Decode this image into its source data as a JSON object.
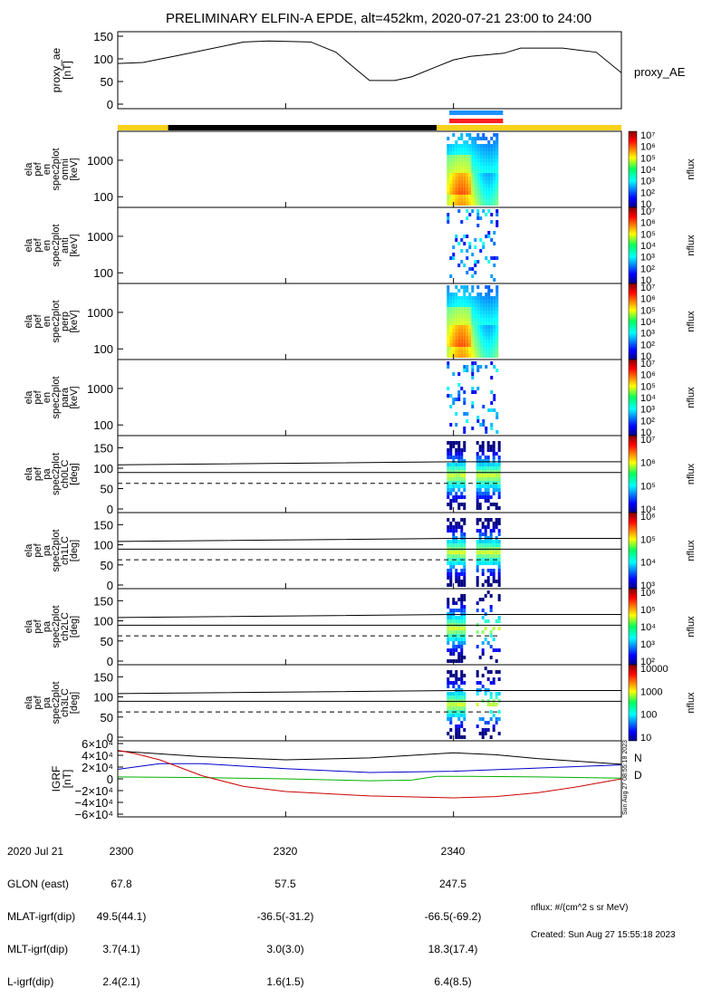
{
  "title": "PRELIMINARY ELFIN-A EPDE, alt=452km, 2020-07-21 23:00 to 24:00",
  "colors": {
    "axis": "#000000",
    "bar_yellow": "#f7d21a",
    "bar_black": "#000000",
    "bar_blue": "#1e90ff",
    "bar_red": "#ff2020",
    "grf_n": "#0000cc",
    "grf_d": "#cc0000",
    "grf_black": "#000000",
    "grf_green": "#00b000"
  },
  "chart_data": [
    {
      "type": "line",
      "name": "proxy_ae",
      "ylabel": [
        "proxy_ae",
        "[nT]"
      ],
      "legend": "proxy_AE",
      "ylim": [
        0,
        150
      ],
      "yticks": [
        "0",
        "50",
        "100",
        "150"
      ],
      "x": [
        2300,
        2303,
        2307,
        2315,
        2318,
        2323,
        2326,
        2328,
        2330,
        2333,
        2335,
        2338,
        2340,
        2342,
        2344,
        2346,
        2348,
        2350,
        2353,
        2357,
        2360
      ],
      "y": [
        88,
        90,
        103,
        130,
        132,
        130,
        110,
        82,
        55,
        55,
        62,
        82,
        95,
        102,
        105,
        108,
        118,
        118,
        118,
        110,
        70
      ]
    },
    {
      "type": "heatmap",
      "name": "omni",
      "ylabel": [
        "ela",
        "pef",
        "en",
        "spec2plot",
        "omni",
        "[keV]"
      ],
      "yscale": "log",
      "yticks": [
        "100",
        "1000"
      ],
      "zlabel": "nflux",
      "zticks": [
        "10",
        "10²",
        "10³",
        "10⁴",
        "10⁵",
        "10⁶",
        "10⁷"
      ]
    },
    {
      "type": "heatmap",
      "name": "anti",
      "ylabel": [
        "ela",
        "pef",
        "en",
        "spec2plot",
        "anti",
        "[keV]"
      ],
      "yscale": "log",
      "yticks": [
        "100",
        "1000"
      ],
      "zlabel": "nflux",
      "zticks": [
        "10",
        "10²",
        "10³",
        "10⁴",
        "10⁵",
        "10⁶",
        "10⁷"
      ]
    },
    {
      "type": "heatmap",
      "name": "perp",
      "ylabel": [
        "ela",
        "pef",
        "en",
        "spec2plot",
        "perp",
        "[keV]"
      ],
      "yscale": "log",
      "yticks": [
        "100",
        "1000"
      ],
      "zlabel": "nflux",
      "zticks": [
        "10",
        "10²",
        "10³",
        "10⁴",
        "10⁵",
        "10⁶",
        "10⁷"
      ]
    },
    {
      "type": "heatmap",
      "name": "para",
      "ylabel": [
        "ela",
        "pef",
        "en",
        "spec2plot",
        "para",
        "[keV]"
      ],
      "yscale": "log",
      "yticks": [
        "100",
        "1000"
      ],
      "zlabel": "nflux",
      "zticks": [
        "10",
        "10²",
        "10³",
        "10⁴",
        "10⁵",
        "10⁶",
        "10⁷"
      ]
    },
    {
      "type": "heatmap",
      "name": "ch0LC",
      "ylabel": [
        "ela",
        "pef",
        "pa",
        "spec2plot",
        "ch0LC",
        "[deg]"
      ],
      "ylim": [
        0,
        180
      ],
      "yticks": [
        "0",
        "50",
        "100",
        "150"
      ],
      "zlabel": "nflux",
      "zticks": [
        "10⁴",
        "10⁵",
        "10⁶",
        "10⁷"
      ]
    },
    {
      "type": "heatmap",
      "name": "ch1LC",
      "ylabel": [
        "ela",
        "pef",
        "pa",
        "spec2plot",
        "ch1LC",
        "[deg]"
      ],
      "ylim": [
        0,
        180
      ],
      "yticks": [
        "0",
        "50",
        "100",
        "150"
      ],
      "zlabel": "nflux",
      "zticks": [
        "10³",
        "10⁴",
        "10⁵",
        "10⁶"
      ]
    },
    {
      "type": "heatmap",
      "name": "ch2LC",
      "ylabel": [
        "ela",
        "pef",
        "pa",
        "spec2plot",
        "ch2LC",
        "[deg]"
      ],
      "ylim": [
        0,
        180
      ],
      "yticks": [
        "0",
        "50",
        "100",
        "150"
      ],
      "zlabel": "nflux",
      "zticks": [
        "10²",
        "10³",
        "10⁴",
        "10⁵",
        "10⁶"
      ]
    },
    {
      "type": "heatmap",
      "name": "ch3LC",
      "ylabel": [
        "ela",
        "pef",
        "pa",
        "spec2plot",
        "ch3LC",
        "[deg]"
      ],
      "ylim": [
        0,
        180
      ],
      "yticks": [
        "0",
        "50",
        "100",
        "150"
      ],
      "zlabel": "nflux",
      "zticks": [
        "10",
        "100",
        "1000",
        "10000"
      ]
    },
    {
      "type": "line",
      "name": "IGRF",
      "ylabel": [
        "IGRF",
        "[nT]"
      ],
      "ylim": [
        -60000,
        60000
      ],
      "yticks": [
        "−6×10⁴",
        "−4×10⁴",
        "−2×10⁴",
        "0",
        "2×10⁴",
        "4×10⁴",
        "6×10⁴"
      ],
      "legend": [
        "N",
        "D"
      ],
      "series": [
        {
          "color": "black",
          "x": [
            2300,
            2310,
            2320,
            2330,
            2340,
            2345,
            2350,
            2360
          ],
          "y": [
            44000,
            35000,
            30000,
            33000,
            41000,
            38000,
            32000,
            23000
          ]
        },
        {
          "color": "blue",
          "x": [
            2300,
            2305,
            2310,
            2320,
            2330,
            2340,
            2350,
            2360
          ],
          "y": [
            15000,
            24000,
            24000,
            16000,
            10000,
            12000,
            17000,
            22000
          ]
        },
        {
          "color": "green",
          "x": [
            2300,
            2310,
            2320,
            2330,
            2335,
            2338,
            2342,
            2350,
            2360
          ],
          "y": [
            3000,
            2000,
            0,
            -3000,
            -2000,
            4000,
            4000,
            3000,
            1000
          ]
        },
        {
          "color": "red",
          "x": [
            2300,
            2302,
            2305,
            2310,
            2315,
            2320,
            2330,
            2340,
            2345,
            2350,
            2355,
            2360
          ],
          "y": [
            45000,
            40000,
            30000,
            5000,
            -12000,
            -20000,
            -27000,
            -30000,
            -28000,
            -22000,
            -12000,
            0
          ]
        }
      ]
    }
  ],
  "orbit_bars": [
    {
      "start": 2300,
      "end": 2306,
      "color": "yellow"
    },
    {
      "start": 2306,
      "end": 2338,
      "color": "black"
    },
    {
      "start": 2338,
      "end": 2360,
      "color": "yellow"
    }
  ],
  "zone_bars": [
    {
      "start": 2339.5,
      "end": 2345.9,
      "color": "blue"
    },
    {
      "start": 2339.5,
      "end": 2345.9,
      "color": "red"
    }
  ],
  "footer": {
    "labels": [
      "2020 Jul 21",
      "GLON (east)",
      "MLAT-igrf(dip)",
      "MLT-igrf(dip)",
      "L-igrf(dip)"
    ],
    "col_2300": [
      "2300",
      "67.8",
      "49.5(44.1)",
      "3.7(4.1)",
      "2.4(2.1)"
    ],
    "col_2320": [
      "2320",
      "57.5",
      "-36.5(-31.2)",
      "3.0(3.0)",
      "1.6(1.5)"
    ],
    "col_2340": [
      "2340",
      "247.5",
      "-66.5(-69.2)",
      "18.3(17.4)",
      "6.4(8.5)"
    ],
    "units_note": "nflux: #/(cm^2 s sr MeV)",
    "created": "Created: Sun Aug 27 15:55:18 2023",
    "side_stamp": "Sun Aug 27 08:55:18 2023"
  }
}
